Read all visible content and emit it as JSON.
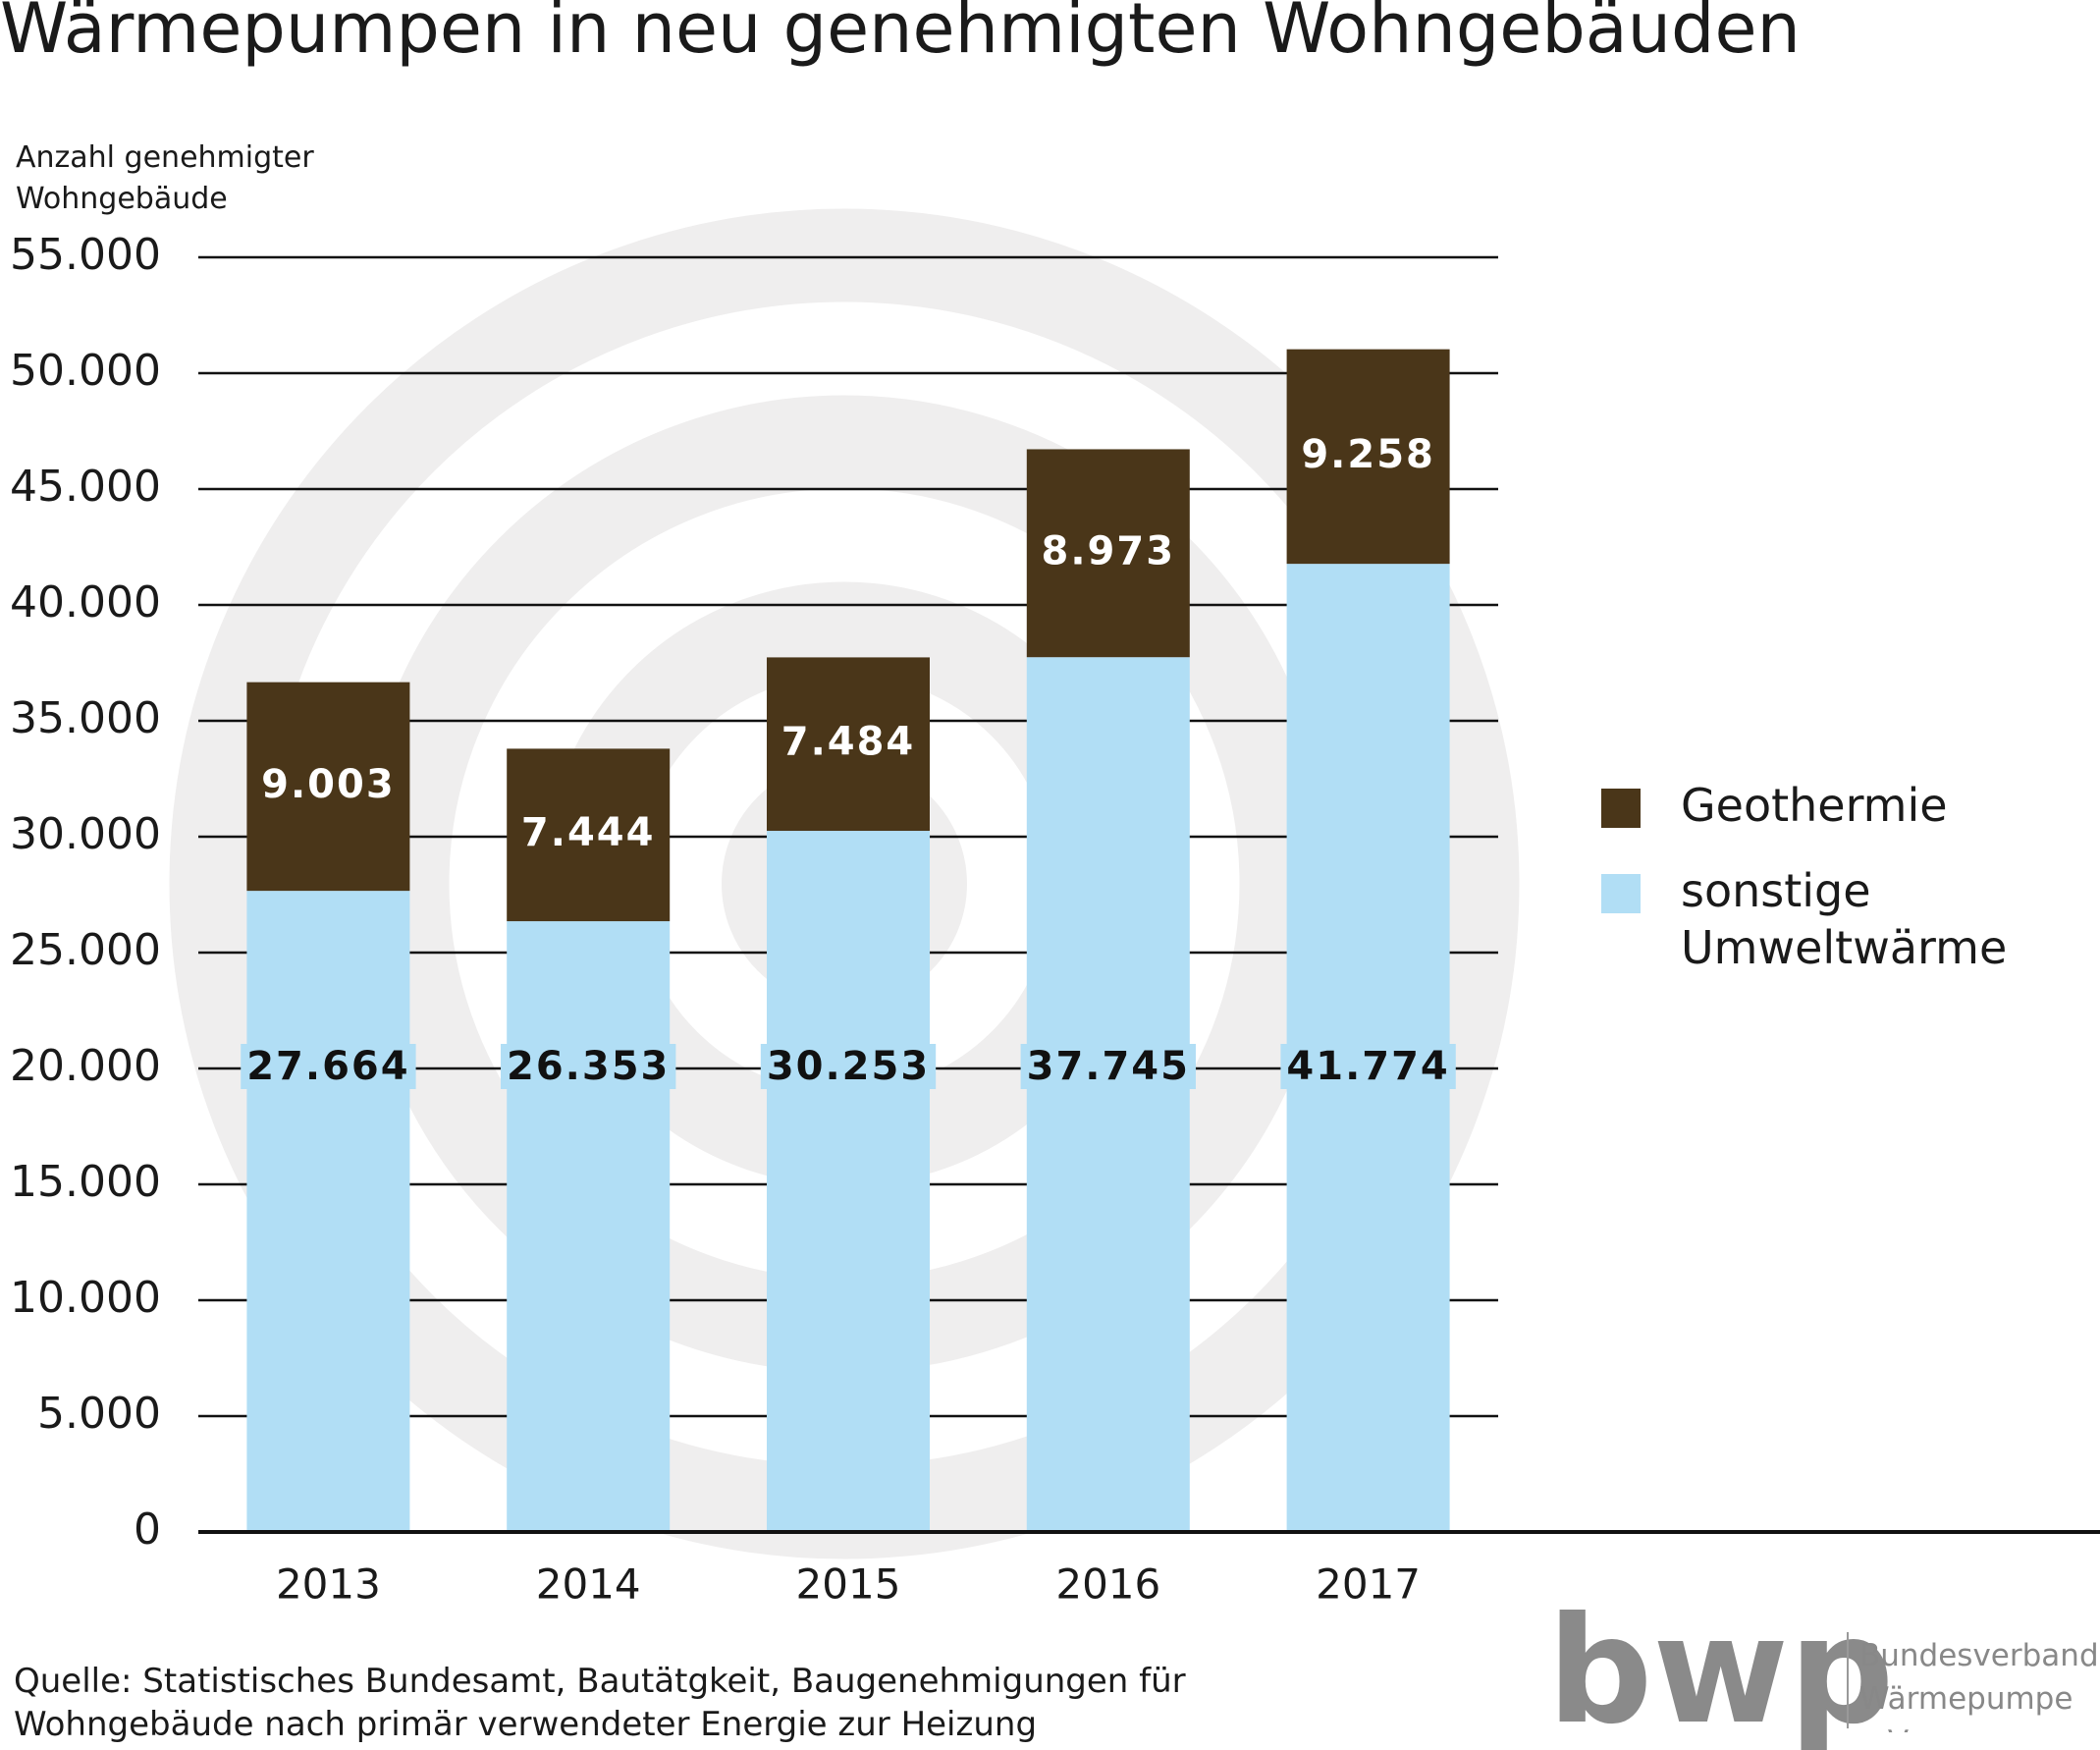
{
  "chart_data": {
    "type": "stacked-bar",
    "title": "Wärmepumpen in neu genehmigten Wohngebäuden",
    "y_label": "Anzahl genehmigter Wohngebäude",
    "categories": [
      "2013",
      "2014",
      "2015",
      "2016",
      "2017"
    ],
    "series": [
      {
        "name": "sonstige Umweltwärme",
        "color": "#b1def5",
        "label_color": "#111111",
        "values": [
          27664,
          26353,
          30253,
          37745,
          41774
        ],
        "value_labels": [
          "27.664",
          "26.353",
          "30.253",
          "37.745",
          "41.774"
        ]
      },
      {
        "name": "Geothermie",
        "color": "#4a3619",
        "label_color": "#ffffff",
        "values": [
          9003,
          7444,
          7484,
          8973,
          9258
        ],
        "value_labels": [
          "9.003",
          "7.444",
          "7.484",
          "8.973",
          "9.258"
        ]
      }
    ],
    "ylim": [
      0,
      55000
    ],
    "yticks": [
      0,
      {
        "value": 5000,
        "label": "5.000"
      },
      {
        "value": 10000,
        "label": "10.000"
      },
      {
        "value": 15000,
        "label": "15.000"
      },
      {
        "value": 20000,
        "label": "20.000"
      },
      {
        "value": 25000,
        "label": "25.000"
      },
      {
        "value": 30000,
        "label": "30.000"
      },
      {
        "value": 35000,
        "label": "35.000"
      },
      {
        "value": 40000,
        "label": "40.000"
      },
      {
        "value": 45000,
        "label": "45.000"
      },
      {
        "value": 50000,
        "label": "50.000"
      },
      {
        "value": 55000,
        "label": "55.000"
      }
    ],
    "grid": true,
    "legend": "right",
    "source": "Quelle: Statistisches Bundesamt, Bautätgkeit, Baugenehmigungen für Wohngebäude nach primär verwendeter Energie zur Heizung"
  },
  "logo": {
    "mark": "bwp",
    "text": "Bundesverband Wärmepumpe e.V."
  }
}
